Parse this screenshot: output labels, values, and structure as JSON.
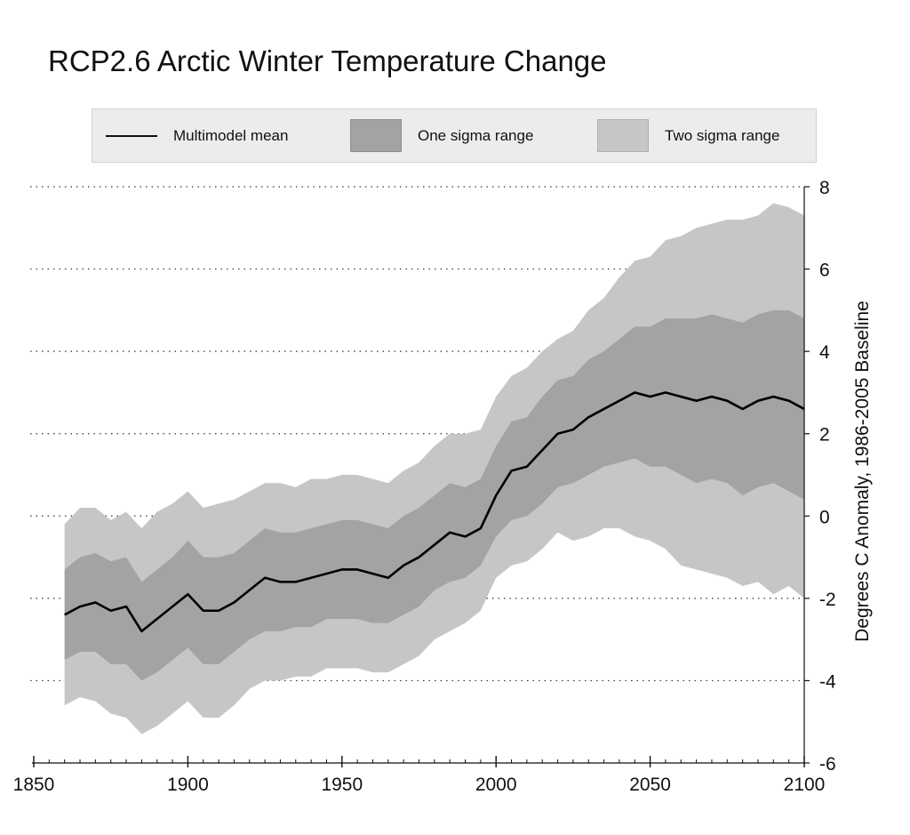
{
  "colors": {
    "mean_line": "#000000",
    "one_sigma": "#a3a3a3",
    "two_sigma": "#c6c6c6",
    "grid": "#333333",
    "legend_bg": "#ececec",
    "legend_border": "#c6d4df"
  },
  "chart_data": {
    "type": "area",
    "title": "RCP2.6 Arctic Winter Temperature Change",
    "xlabel": "",
    "ylabel": "Degrees C Anomaly, 1986-2005 Baseline",
    "xlim": [
      1850,
      2100
    ],
    "ylim": [
      -6,
      8
    ],
    "x_ticks": [
      1850,
      1900,
      1950,
      2000,
      2050,
      2100
    ],
    "y_ticks": [
      -6,
      -4,
      -2,
      0,
      2,
      4,
      6,
      8
    ],
    "y_axis_side": "right",
    "grid": "horizontal dotted",
    "legend_position": "top",
    "legend": [
      "Multimodel mean",
      "One sigma range",
      "Two sigma range"
    ],
    "x": [
      1860,
      1865,
      1870,
      1875,
      1880,
      1885,
      1890,
      1895,
      1900,
      1905,
      1910,
      1915,
      1920,
      1925,
      1930,
      1935,
      1940,
      1945,
      1950,
      1955,
      1960,
      1965,
      1970,
      1975,
      1980,
      1985,
      1990,
      1995,
      2000,
      2005,
      2010,
      2015,
      2020,
      2025,
      2030,
      2035,
      2040,
      2045,
      2050,
      2055,
      2060,
      2065,
      2070,
      2075,
      2080,
      2085,
      2090,
      2095,
      2100
    ],
    "series": [
      {
        "name": "Multimodel mean",
        "values": [
          -2.4,
          -2.2,
          -2.1,
          -2.3,
          -2.2,
          -2.8,
          -2.5,
          -2.2,
          -1.9,
          -2.3,
          -2.3,
          -2.1,
          -1.8,
          -1.5,
          -1.6,
          -1.6,
          -1.5,
          -1.4,
          -1.3,
          -1.3,
          -1.4,
          -1.5,
          -1.2,
          -1.0,
          -0.7,
          -0.4,
          -0.5,
          -0.3,
          0.5,
          1.1,
          1.2,
          1.6,
          2.0,
          2.1,
          2.4,
          2.6,
          2.8,
          3.0,
          2.9,
          3.0,
          2.9,
          2.8,
          2.9,
          2.8,
          2.6,
          2.8,
          2.9,
          2.8,
          2.6
        ]
      },
      {
        "name": "One sigma range",
        "lower": [
          -3.5,
          -3.3,
          -3.3,
          -3.6,
          -3.6,
          -4.0,
          -3.8,
          -3.5,
          -3.2,
          -3.6,
          -3.6,
          -3.3,
          -3.0,
          -2.8,
          -2.8,
          -2.7,
          -2.7,
          -2.5,
          -2.5,
          -2.5,
          -2.6,
          -2.6,
          -2.4,
          -2.2,
          -1.8,
          -1.6,
          -1.5,
          -1.2,
          -0.5,
          -0.1,
          0.0,
          0.3,
          0.7,
          0.8,
          1.0,
          1.2,
          1.3,
          1.4,
          1.2,
          1.2,
          1.0,
          0.8,
          0.9,
          0.8,
          0.5,
          0.7,
          0.8,
          0.6,
          0.4
        ],
        "upper": [
          -1.3,
          -1.0,
          -0.9,
          -1.1,
          -1.0,
          -1.6,
          -1.3,
          -1.0,
          -0.6,
          -1.0,
          -1.0,
          -0.9,
          -0.6,
          -0.3,
          -0.4,
          -0.4,
          -0.3,
          -0.2,
          -0.1,
          -0.1,
          -0.2,
          -0.3,
          0.0,
          0.2,
          0.5,
          0.8,
          0.7,
          0.9,
          1.7,
          2.3,
          2.4,
          2.9,
          3.3,
          3.4,
          3.8,
          4.0,
          4.3,
          4.6,
          4.6,
          4.8,
          4.8,
          4.8,
          4.9,
          4.8,
          4.7,
          4.9,
          5.0,
          5.0,
          4.8
        ]
      },
      {
        "name": "Two sigma range",
        "lower": [
          -4.6,
          -4.4,
          -4.5,
          -4.8,
          -4.9,
          -5.3,
          -5.1,
          -4.8,
          -4.5,
          -4.9,
          -4.9,
          -4.6,
          -4.2,
          -4.0,
          -4.0,
          -3.9,
          -3.9,
          -3.7,
          -3.7,
          -3.7,
          -3.8,
          -3.8,
          -3.6,
          -3.4,
          -3.0,
          -2.8,
          -2.6,
          -2.3,
          -1.5,
          -1.2,
          -1.1,
          -0.8,
          -0.4,
          -0.6,
          -0.5,
          -0.3,
          -0.3,
          -0.5,
          -0.6,
          -0.8,
          -1.2,
          -1.3,
          -1.4,
          -1.5,
          -1.7,
          -1.6,
          -1.9,
          -1.7,
          -2.0
        ],
        "upper": [
          -0.2,
          0.2,
          0.2,
          -0.1,
          0.1,
          -0.3,
          0.1,
          0.3,
          0.6,
          0.2,
          0.3,
          0.4,
          0.6,
          0.8,
          0.8,
          0.7,
          0.9,
          0.9,
          1.0,
          1.0,
          0.9,
          0.8,
          1.1,
          1.3,
          1.7,
          2.0,
          2.0,
          2.1,
          2.9,
          3.4,
          3.6,
          4.0,
          4.3,
          4.5,
          5.0,
          5.3,
          5.8,
          6.2,
          6.3,
          6.7,
          6.8,
          7.0,
          7.1,
          7.2,
          7.2,
          7.3,
          7.6,
          7.5,
          7.3
        ]
      }
    ]
  }
}
